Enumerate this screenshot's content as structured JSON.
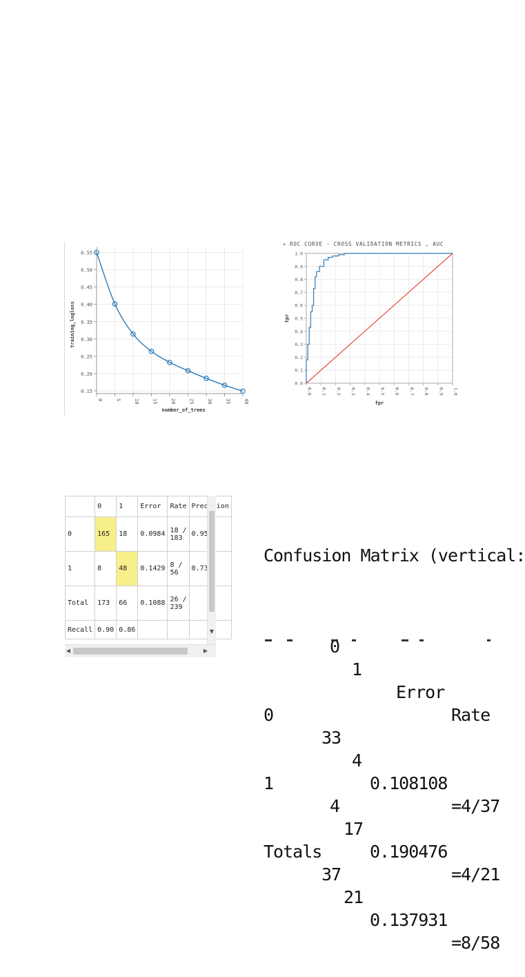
{
  "chart_data": [
    {
      "type": "line",
      "xlabel": "number_of_trees",
      "ylabel": "training_logloss",
      "x": [
        0,
        5,
        10,
        15,
        20,
        25,
        30,
        35,
        40
      ],
      "x_ticks": [
        "0",
        "5",
        "10",
        "15",
        "20",
        "25",
        "30",
        "35",
        "40"
      ],
      "y_ticks": [
        "0.55",
        "0.50",
        "0.45",
        "0.40",
        "0.35",
        "0.30",
        "0.25",
        "0.20",
        "0.15"
      ],
      "series": [
        {
          "values": [
            0.55,
            0.401,
            0.314,
            0.264,
            0.232,
            0.208,
            0.186,
            0.166,
            0.149
          ]
        }
      ],
      "xlim": [
        0,
        40
      ],
      "ylim": [
        0.142,
        0.565
      ],
      "grid": true,
      "line_color": "#2b7bba"
    },
    {
      "type": "line",
      "title": "ROC CURVE - CROSS VALIDATION METRICS , AUC",
      "xlabel": "fpr",
      "ylabel": "tpr",
      "x_ticks": [
        "0.0",
        "0.1",
        "0.2",
        "0.3",
        "0.4",
        "0.5",
        "0.6",
        "0.7",
        "0.8",
        "0.9",
        "1.0"
      ],
      "y_ticks": [
        "0.0",
        "0.1",
        "0.2",
        "0.3",
        "0.4",
        "0.5",
        "0.6",
        "0.7",
        "0.8",
        "0.9",
        "1.0"
      ],
      "series": [
        {
          "x": [
            0.0,
            0.0,
            0.01,
            0.01,
            0.02,
            0.02,
            0.03,
            0.03,
            0.04,
            0.04,
            0.05,
            0.05,
            0.06,
            0.06,
            0.07,
            0.07,
            0.09,
            0.09,
            0.12,
            0.12,
            0.15,
            0.15,
            0.18,
            0.18,
            0.22,
            0.22,
            0.26,
            0.26,
            0.95,
            0.95,
            1.0
          ],
          "y": [
            0.0,
            0.18,
            0.18,
            0.3,
            0.3,
            0.43,
            0.43,
            0.55,
            0.55,
            0.6,
            0.6,
            0.73,
            0.73,
            0.82,
            0.82,
            0.86,
            0.86,
            0.9,
            0.9,
            0.95,
            0.95,
            0.97,
            0.97,
            0.98,
            0.98,
            0.99,
            0.99,
            1.0,
            1.0,
            1.0,
            1.0
          ],
          "color": "#2b7bba"
        },
        {
          "x": [
            0.0,
            1.0
          ],
          "y": [
            0.0,
            1.0
          ],
          "color": "#e8473a"
        }
      ],
      "xlim": [
        0,
        1
      ],
      "ylim": [
        0,
        1
      ],
      "grid": true
    }
  ],
  "confusion_table": {
    "header": [
      "",
      "0",
      "1",
      "Error",
      "Rate",
      "Precision"
    ],
    "rows": [
      [
        "0",
        "165",
        "18",
        "0.0984",
        "18 /\n183",
        "0.95"
      ],
      [
        "1",
        "8",
        "48",
        "0.1429",
        "8 /\n56",
        "0.73"
      ],
      [
        "Total",
        "173",
        "66",
        "0.1088",
        "26 /\n239",
        ""
      ],
      [
        "Recall",
        "0.90",
        "0.86",
        "",
        "",
        ""
      ]
    ],
    "highlight_color": "#f7ef8a"
  },
  "confusion_text": {
    "title": "Confusion Matrix (vertical:",
    "header": [
      "0",
      "1",
      "Error",
      "Rate"
    ],
    "rows": [
      [
        "0",
        "33",
        "4",
        "0.108108",
        "=4/37"
      ],
      [
        "1",
        "4",
        "17",
        "0.190476",
        "=4/21"
      ],
      [
        "Totals",
        "37",
        "21",
        "0.137931",
        "=8/58"
      ]
    ]
  }
}
